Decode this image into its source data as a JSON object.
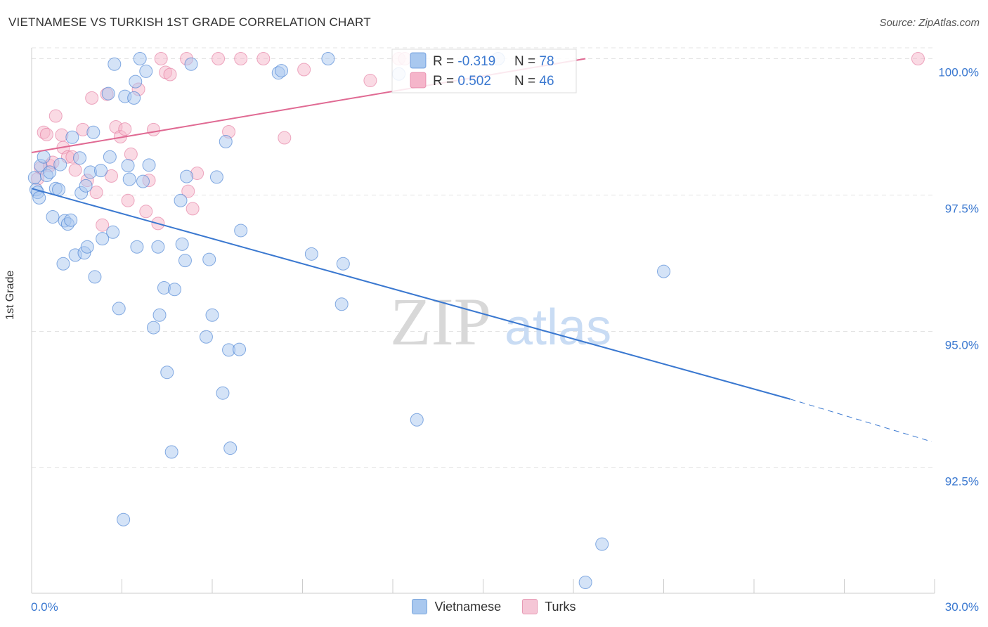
{
  "title": "VIETNAMESE VS TURKISH 1ST GRADE CORRELATION CHART",
  "source": "Source: ZipAtlas.com",
  "watermark": {
    "zip": "ZIP",
    "atlas": "atlas"
  },
  "colors": {
    "blue": "#3a78d0",
    "blueFill": "#a9c8ef",
    "pink": "#e06a93",
    "pinkFill": "#f5b5ca",
    "tick": "#3a78d0",
    "grid": "#e3e3e3"
  },
  "legend_box": [
    {
      "r_label": "R = ",
      "r_value": "-0.319",
      "n_label": "N = ",
      "n_value": "78"
    },
    {
      "r_label": "R = ",
      "r_value": "0.502",
      "n_label": "N = ",
      "n_value": "46"
    }
  ],
  "chart_data": {
    "type": "scatter",
    "title": "VIETNAMESE VS TURKISH 1ST GRADE CORRELATION CHART",
    "xlabel": "",
    "ylabel": "1st Grade",
    "xlim": [
      0,
      30
    ],
    "ylim": [
      90.2,
      100.2
    ],
    "x_tick_labels": [
      "0.0%",
      "30.0%"
    ],
    "y_ticks": [
      92.5,
      95.0,
      97.5,
      100.0
    ],
    "y_tick_labels": [
      "92.5%",
      "95.0%",
      "97.5%",
      "100.0%"
    ],
    "series": [
      {
        "name": "Vietnamese",
        "r": -0.319,
        "n": 78,
        "trend": {
          "x0": 0,
          "y0": 97.62,
          "x1": 25.2,
          "y1": 93.76,
          "dash_x1": 29.9,
          "dash_y1": 92.98
        },
        "points": [
          [
            0.1,
            97.82
          ],
          [
            0.15,
            97.6
          ],
          [
            0.2,
            97.55
          ],
          [
            0.3,
            98.04
          ],
          [
            0.4,
            98.2
          ],
          [
            0.5,
            97.86
          ],
          [
            0.6,
            97.92
          ],
          [
            0.7,
            97.1
          ],
          [
            0.8,
            97.62
          ],
          [
            0.9,
            97.6
          ],
          [
            0.95,
            98.06
          ],
          [
            1.05,
            96.24
          ],
          [
            1.1,
            97.03
          ],
          [
            1.2,
            96.97
          ],
          [
            1.3,
            97.04
          ],
          [
            1.35,
            98.56
          ],
          [
            1.45,
            96.4
          ],
          [
            1.6,
            98.18
          ],
          [
            1.65,
            97.54
          ],
          [
            1.75,
            96.44
          ],
          [
            1.8,
            97.67
          ],
          [
            1.85,
            96.55
          ],
          [
            1.95,
            97.92
          ],
          [
            2.05,
            98.65
          ],
          [
            2.1,
            96.0
          ],
          [
            2.3,
            97.95
          ],
          [
            2.35,
            96.7
          ],
          [
            2.55,
            99.36
          ],
          [
            2.6,
            98.2
          ],
          [
            2.7,
            96.82
          ],
          [
            2.75,
            99.9
          ],
          [
            2.9,
            95.42
          ],
          [
            3.05,
            91.55
          ],
          [
            3.1,
            99.31
          ],
          [
            3.2,
            98.04
          ],
          [
            3.25,
            97.79
          ],
          [
            3.4,
            99.28
          ],
          [
            3.45,
            99.58
          ],
          [
            3.5,
            96.55
          ],
          [
            3.6,
            100.0
          ],
          [
            3.7,
            97.75
          ],
          [
            3.8,
            99.77
          ],
          [
            3.9,
            98.05
          ],
          [
            4.05,
            95.07
          ],
          [
            4.2,
            96.55
          ],
          [
            4.25,
            95.3
          ],
          [
            4.4,
            95.8
          ],
          [
            4.5,
            94.25
          ],
          [
            4.65,
            92.79
          ],
          [
            4.75,
            95.77
          ],
          [
            4.95,
            97.4
          ],
          [
            5.0,
            96.6
          ],
          [
            5.1,
            96.3
          ],
          [
            5.15,
            97.84
          ],
          [
            5.3,
            99.9
          ],
          [
            5.8,
            94.9
          ],
          [
            5.9,
            96.32
          ],
          [
            6.0,
            95.3
          ],
          [
            6.15,
            97.83
          ],
          [
            6.35,
            93.87
          ],
          [
            6.45,
            98.48
          ],
          [
            6.55,
            94.66
          ],
          [
            6.6,
            92.86
          ],
          [
            6.9,
            94.67
          ],
          [
            6.95,
            96.85
          ],
          [
            8.2,
            99.74
          ],
          [
            8.3,
            99.78
          ],
          [
            9.3,
            96.42
          ],
          [
            9.85,
            100.0
          ],
          [
            10.3,
            95.5
          ],
          [
            10.35,
            96.24
          ],
          [
            12.2,
            99.72
          ],
          [
            12.8,
            93.38
          ],
          [
            15.5,
            100.0
          ],
          [
            18.4,
            90.4
          ],
          [
            18.95,
            91.1
          ],
          [
            21.0,
            96.1
          ],
          [
            0.25,
            97.45
          ]
        ]
      },
      {
        "name": "Turks",
        "r": 0.502,
        "n": 46,
        "trend": {
          "x0": 0,
          "y0": 98.28,
          "x1": 18.4,
          "y1": 100.0
        },
        "points": [
          [
            0.2,
            97.8
          ],
          [
            0.3,
            98.0
          ],
          [
            0.4,
            98.65
          ],
          [
            0.5,
            98.61
          ],
          [
            0.6,
            98.04
          ],
          [
            0.7,
            98.1
          ],
          [
            0.8,
            98.95
          ],
          [
            1.0,
            98.6
          ],
          [
            1.05,
            98.37
          ],
          [
            1.2,
            98.2
          ],
          [
            1.35,
            98.2
          ],
          [
            1.45,
            97.96
          ],
          [
            1.7,
            98.7
          ],
          [
            1.85,
            97.77
          ],
          [
            2.0,
            99.28
          ],
          [
            2.15,
            97.55
          ],
          [
            2.35,
            96.95
          ],
          [
            2.5,
            99.35
          ],
          [
            2.65,
            97.85
          ],
          [
            2.8,
            98.75
          ],
          [
            2.95,
            98.57
          ],
          [
            3.1,
            98.71
          ],
          [
            3.2,
            97.4
          ],
          [
            3.3,
            98.25
          ],
          [
            3.55,
            99.44
          ],
          [
            3.8,
            97.2
          ],
          [
            3.9,
            97.77
          ],
          [
            4.05,
            98.7
          ],
          [
            4.2,
            96.98
          ],
          [
            4.3,
            100.0
          ],
          [
            4.45,
            99.75
          ],
          [
            4.6,
            99.71
          ],
          [
            5.15,
            100.0
          ],
          [
            5.2,
            97.57
          ],
          [
            5.35,
            97.25
          ],
          [
            5.5,
            97.9
          ],
          [
            6.2,
            100.0
          ],
          [
            6.55,
            98.66
          ],
          [
            6.95,
            100.0
          ],
          [
            7.7,
            100.0
          ],
          [
            8.4,
            98.55
          ],
          [
            9.05,
            99.8
          ],
          [
            11.25,
            99.6
          ],
          [
            12.2,
            100.0
          ],
          [
            12.4,
            100.0
          ],
          [
            29.45,
            100.0
          ]
        ]
      }
    ]
  }
}
